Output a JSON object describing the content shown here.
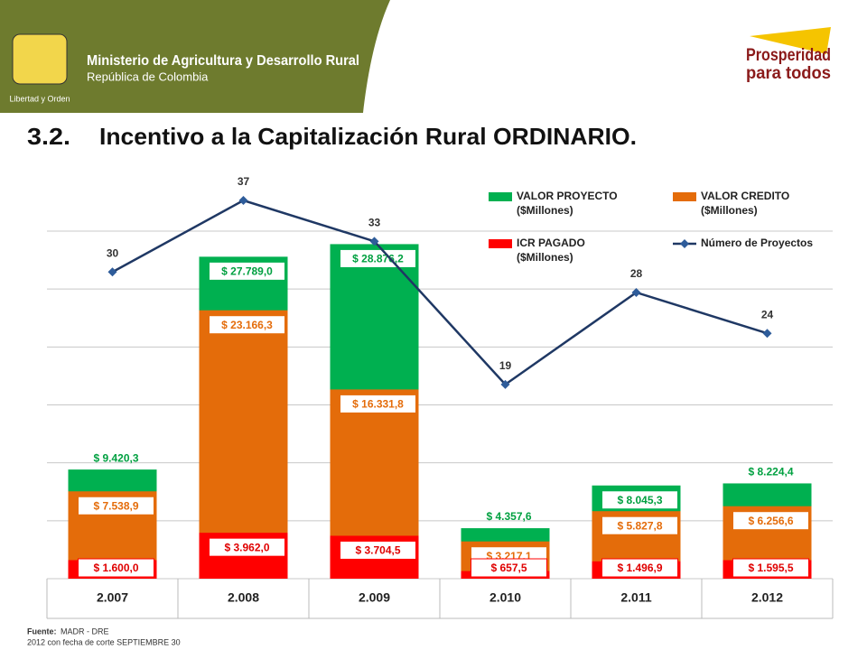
{
  "header": {
    "ministry": "Ministerio de Agricultura y Desarrollo Rural",
    "country": "República de Colombia",
    "motto": "Libertad y Orden",
    "logo_top": "Prosperidad",
    "logo_bottom": "para todos"
  },
  "title": {
    "number": "3.2.",
    "text": "Incentivo a la Capitalización Rural  ORDINARIO."
  },
  "chart_data": {
    "type": "bar",
    "categories": [
      "2.007",
      "2.008",
      "2.009",
      "2.010",
      "2.011",
      "2.012"
    ],
    "series": [
      {
        "name": "VALOR PROYECTO ($Millones)",
        "color": "#00b050",
        "label_color": "#00a040",
        "values": [
          9420.3,
          27789.0,
          28876.2,
          4357.6,
          8045.3,
          8224.4
        ],
        "value_labels": [
          "$ 9.420,3",
          "$ 27.789,0",
          "$ 28.876,2",
          "$ 4.357,6",
          "$ 8.045,3",
          "$ 8.224,4"
        ]
      },
      {
        "name": "VALOR CREDITO ($Millones)",
        "color": "#e46c0a",
        "label_color": "#e46c0a",
        "values": [
          7538.9,
          23166.3,
          16331.8,
          3217.1,
          5827.8,
          6256.6
        ],
        "value_labels": [
          "$ 7.538,9",
          "$ 23.166,3",
          "$ 16.331,8",
          "$ 3.217,1",
          "$ 5.827,8",
          "$ 6.256,6"
        ]
      },
      {
        "name": "ICR PAGADO ($Millones)",
        "color": "#ff0000",
        "label_color": "#e00000",
        "values": [
          1600.0,
          3962.0,
          3704.5,
          657.5,
          1496.9,
          1595.5
        ],
        "value_labels": [
          "$ 1.600,0",
          "$ 3.962,0",
          "$ 3.704,5",
          "$ 657,5",
          "$ 1.496,9",
          "$ 1.595,5"
        ]
      },
      {
        "name": "Número de Proyectos",
        "type": "line",
        "axis": "y2",
        "color": "#1f3864",
        "values": [
          30,
          37,
          33,
          19,
          28,
          24
        ]
      }
    ],
    "ylim": [
      0,
      30000
    ],
    "yticks": [
      0,
      5000,
      10000,
      15000,
      20000,
      25000,
      30000
    ],
    "y2lim": [
      0,
      34
    ],
    "grid": true,
    "overlap": true
  },
  "footer": {
    "source_label": "Fuente:",
    "source": "MADR - DRE",
    "note": "2012 con fecha de corte SEPTIEMBRE 30"
  }
}
